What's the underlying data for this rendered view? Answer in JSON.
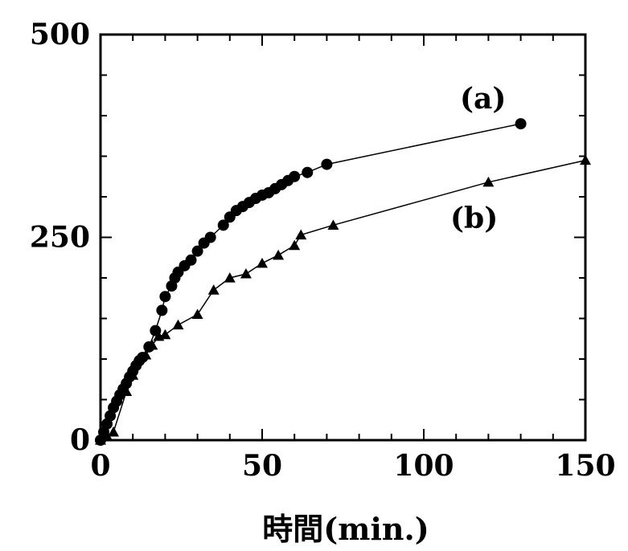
{
  "chart_data": {
    "type": "scatter",
    "xlabel": "時間(min.)",
    "ylabel": "",
    "xlim": [
      0,
      150
    ],
    "ylim": [
      0,
      500
    ],
    "x_ticks": [
      "0",
      "50",
      "100",
      "150"
    ],
    "y_ticks": [
      "0",
      "250",
      "500"
    ],
    "grid": false,
    "series": [
      {
        "name": "(a)",
        "marker": "circle",
        "points": [
          [
            0,
            0
          ],
          [
            1,
            10
          ],
          [
            2,
            20
          ],
          [
            3,
            30
          ],
          [
            4,
            40
          ],
          [
            5,
            48
          ],
          [
            6,
            56
          ],
          [
            7,
            63
          ],
          [
            8,
            70
          ],
          [
            9,
            78
          ],
          [
            10,
            85
          ],
          [
            11,
            92
          ],
          [
            12,
            98
          ],
          [
            13,
            102
          ],
          [
            15,
            115
          ],
          [
            17,
            135
          ],
          [
            19,
            160
          ],
          [
            20,
            177
          ],
          [
            22,
            190
          ],
          [
            23,
            200
          ],
          [
            24,
            207
          ],
          [
            26,
            215
          ],
          [
            28,
            222
          ],
          [
            30,
            233
          ],
          [
            32,
            243
          ],
          [
            34,
            250
          ],
          [
            38,
            265
          ],
          [
            40,
            275
          ],
          [
            42,
            283
          ],
          [
            44,
            288
          ],
          [
            46,
            293
          ],
          [
            48,
            298
          ],
          [
            50,
            302
          ],
          [
            52,
            305
          ],
          [
            54,
            310
          ],
          [
            56,
            315
          ],
          [
            58,
            320
          ],
          [
            60,
            325
          ],
          [
            64,
            330
          ],
          [
            70,
            340
          ],
          [
            130,
            390
          ]
        ]
      },
      {
        "name": "(b)",
        "marker": "triangle",
        "points": [
          [
            0,
            0
          ],
          [
            2,
            5
          ],
          [
            4,
            10
          ],
          [
            8,
            60
          ],
          [
            10,
            80
          ],
          [
            14,
            105
          ],
          [
            16,
            117
          ],
          [
            18,
            128
          ],
          [
            20,
            130
          ],
          [
            24,
            142
          ],
          [
            30,
            155
          ],
          [
            35,
            185
          ],
          [
            40,
            200
          ],
          [
            45,
            205
          ],
          [
            50,
            218
          ],
          [
            55,
            228
          ],
          [
            60,
            240
          ],
          [
            62,
            253
          ],
          [
            72,
            265
          ],
          [
            120,
            318
          ],
          [
            150,
            345
          ]
        ]
      }
    ]
  }
}
